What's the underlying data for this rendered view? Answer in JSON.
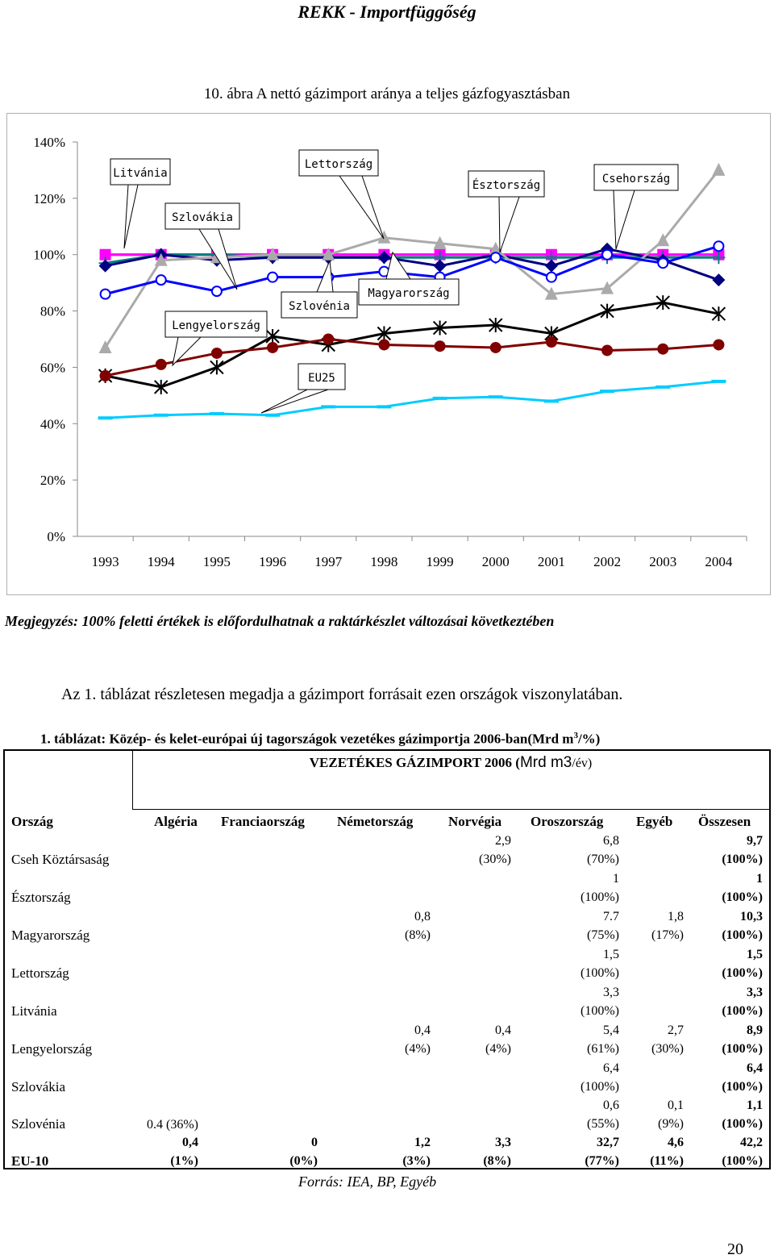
{
  "header": {
    "title": "REKK - Importfüggőség"
  },
  "figure": {
    "title": "10. ábra A nettó gázimport aránya a teljes gázfogyasztásban"
  },
  "chart_data": {
    "type": "line",
    "categories": [
      "1993",
      "1994",
      "1995",
      "1996",
      "1997",
      "1998",
      "1999",
      "2000",
      "2001",
      "2002",
      "2003",
      "2004"
    ],
    "y_ticks": [
      "0%",
      "20%",
      "40%",
      "60%",
      "80%",
      "100%",
      "120%",
      "140%"
    ],
    "ylim": [
      0,
      140
    ],
    "grid": false,
    "series": [
      {
        "name": "Lettország",
        "color": "#ff0000",
        "marker": "none",
        "values": [
          100,
          100,
          100,
          100,
          100,
          100,
          100,
          100,
          100,
          100,
          100,
          100
        ]
      },
      {
        "name": "Litvánia",
        "color": "#ff00ff",
        "marker": "square",
        "values": [
          100,
          100,
          100,
          100,
          100,
          100,
          100,
          100,
          100,
          100,
          100,
          100
        ]
      },
      {
        "name": "Szlovákia",
        "color": "#008080",
        "marker": "plus",
        "values": [
          97,
          100,
          100,
          99,
          99,
          99,
          99,
          99,
          99,
          99,
          99,
          99
        ]
      },
      {
        "name": "Csehország",
        "color": "#000080",
        "marker": "diamond",
        "values": [
          96,
          100,
          98,
          99,
          99,
          99,
          96,
          100,
          96,
          102,
          98,
          91
        ]
      },
      {
        "name": "Észtország",
        "color": "#aaaaaa",
        "marker": "triangle",
        "values": [
          67,
          98,
          99,
          100,
          100,
          106,
          104,
          102,
          86,
          88,
          105,
          130
        ]
      },
      {
        "name": "Lengyelország",
        "color": "#0000ff",
        "marker": "circle",
        "values": [
          86,
          91,
          87,
          92,
          92,
          94,
          92,
          99,
          92,
          100,
          97,
          103
        ]
      },
      {
        "name": "Szlovénia",
        "color": "#000000",
        "marker": "asterisk",
        "values": [
          57,
          53,
          60,
          71,
          68,
          72,
          74,
          75,
          72,
          80,
          83,
          79
        ]
      },
      {
        "name": "Magyarország",
        "color": "#800000",
        "marker": "dot",
        "values": [
          57,
          61,
          65,
          67,
          70,
          68,
          67.5,
          67,
          69,
          66,
          66.5,
          68
        ]
      },
      {
        "name": "EU25",
        "color": "#00ccff",
        "marker": "dash",
        "values": [
          42,
          43,
          43.5,
          43,
          46,
          46,
          49,
          49.5,
          48,
          51.5,
          53,
          55
        ]
      }
    ],
    "callouts": [
      "Litvánia",
      "Lettország",
      "Észtország",
      "Csehország",
      "Szlovákia",
      "Szlovénia",
      "Magyarország",
      "Lengyelország",
      "EU25"
    ]
  },
  "note": "Megjegyzés: 100% feletti értékek is előfordulhatnak a raktárkészlet változásai következtében",
  "paragraph": "Az 1. táblázat részletesen megadja a gázimport forrásait ezen országok viszonylatában.",
  "table": {
    "caption_main": "1. táblázat: Közép- és kelet-európai új tagországok vezetékes gázimportja 2006-ban(Mrd m",
    "caption_sup": "3",
    "caption_end": "/%)",
    "heading_main": "VEZETÉKES GÁZIMPORT 2006 (",
    "heading_unit": "Mrd m3",
    "heading_unit2": "/év)",
    "columns": [
      "Ország",
      "Algéria",
      "Franciaország",
      "Németország",
      "Norvégia",
      "Oroszország",
      "Egyéb",
      "Összesen"
    ],
    "rows": [
      {
        "name": "Cseh Köztársaság",
        "cells": [
          "",
          "",
          "",
          "2,9\n(30%)",
          "6,8\n(70%)",
          "",
          "9,7\n(100%)"
        ]
      },
      {
        "name": "Észtország",
        "cells": [
          "",
          "",
          "",
          "",
          "1\n(100%)",
          "",
          "1\n(100%)"
        ]
      },
      {
        "name": "Magyarország",
        "cells": [
          "",
          "",
          "0,8\n(8%)",
          "",
          "7.7\n(75%)",
          "1,8\n(17%)",
          "10,3\n(100%)"
        ]
      },
      {
        "name": "Lettország",
        "cells": [
          "",
          "",
          "",
          "",
          "1,5\n(100%)",
          "",
          "1,5\n(100%)"
        ]
      },
      {
        "name": "Litvánia",
        "cells": [
          "",
          "",
          "",
          "",
          "3,3\n(100%)",
          "",
          "3,3\n(100%)"
        ]
      },
      {
        "name": "Lengyelország",
        "cells": [
          "",
          "",
          "0,4\n(4%)",
          "0,4\n(4%)",
          "5,4\n(61%)",
          "2,7\n(30%)",
          "8,9\n(100%)"
        ]
      },
      {
        "name": "Szlovákia",
        "cells": [
          "",
          "",
          "",
          "",
          "6,4\n(100%)",
          "",
          "6,4\n(100%)"
        ]
      },
      {
        "name": "Szlovénia",
        "cells": [
          "0.4 (36%)",
          "",
          "",
          "",
          "0,6\n(55%)",
          "0,1\n(9%)",
          "1,1\n(100%)"
        ]
      },
      {
        "name": "EU-10",
        "cells": [
          "0,4\n(1%)",
          "0\n(0%)",
          "1,2\n(3%)",
          "3,3\n(8%)",
          "32,7\n(77%)",
          "4,6\n(11%)",
          "42,2\n(100%)"
        ]
      }
    ],
    "source": "Forrás: IEA, BP, Egyéb"
  },
  "page_number": "20"
}
